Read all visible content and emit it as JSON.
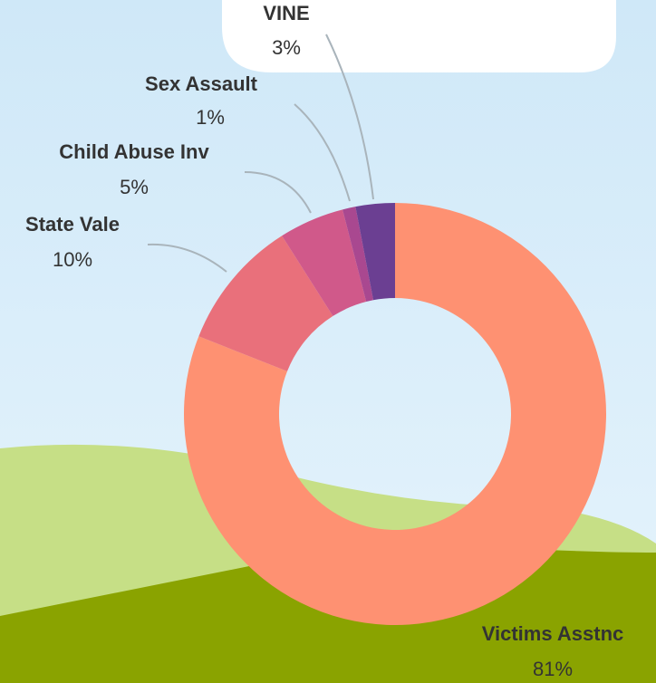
{
  "chart_data": {
    "type": "donut",
    "categories": [
      "Victims Asstnc",
      "State Vale",
      "Child Abuse Inv",
      "Sex Assault",
      "VINE"
    ],
    "values": [
      81,
      10,
      5,
      1,
      3
    ],
    "value_labels": [
      "81%",
      "10%",
      "5%",
      "1%",
      "3%"
    ],
    "colors": [
      "#fe9172",
      "#e9707b",
      "#d0598a",
      "#a94890",
      "#6b3f92"
    ]
  }
}
